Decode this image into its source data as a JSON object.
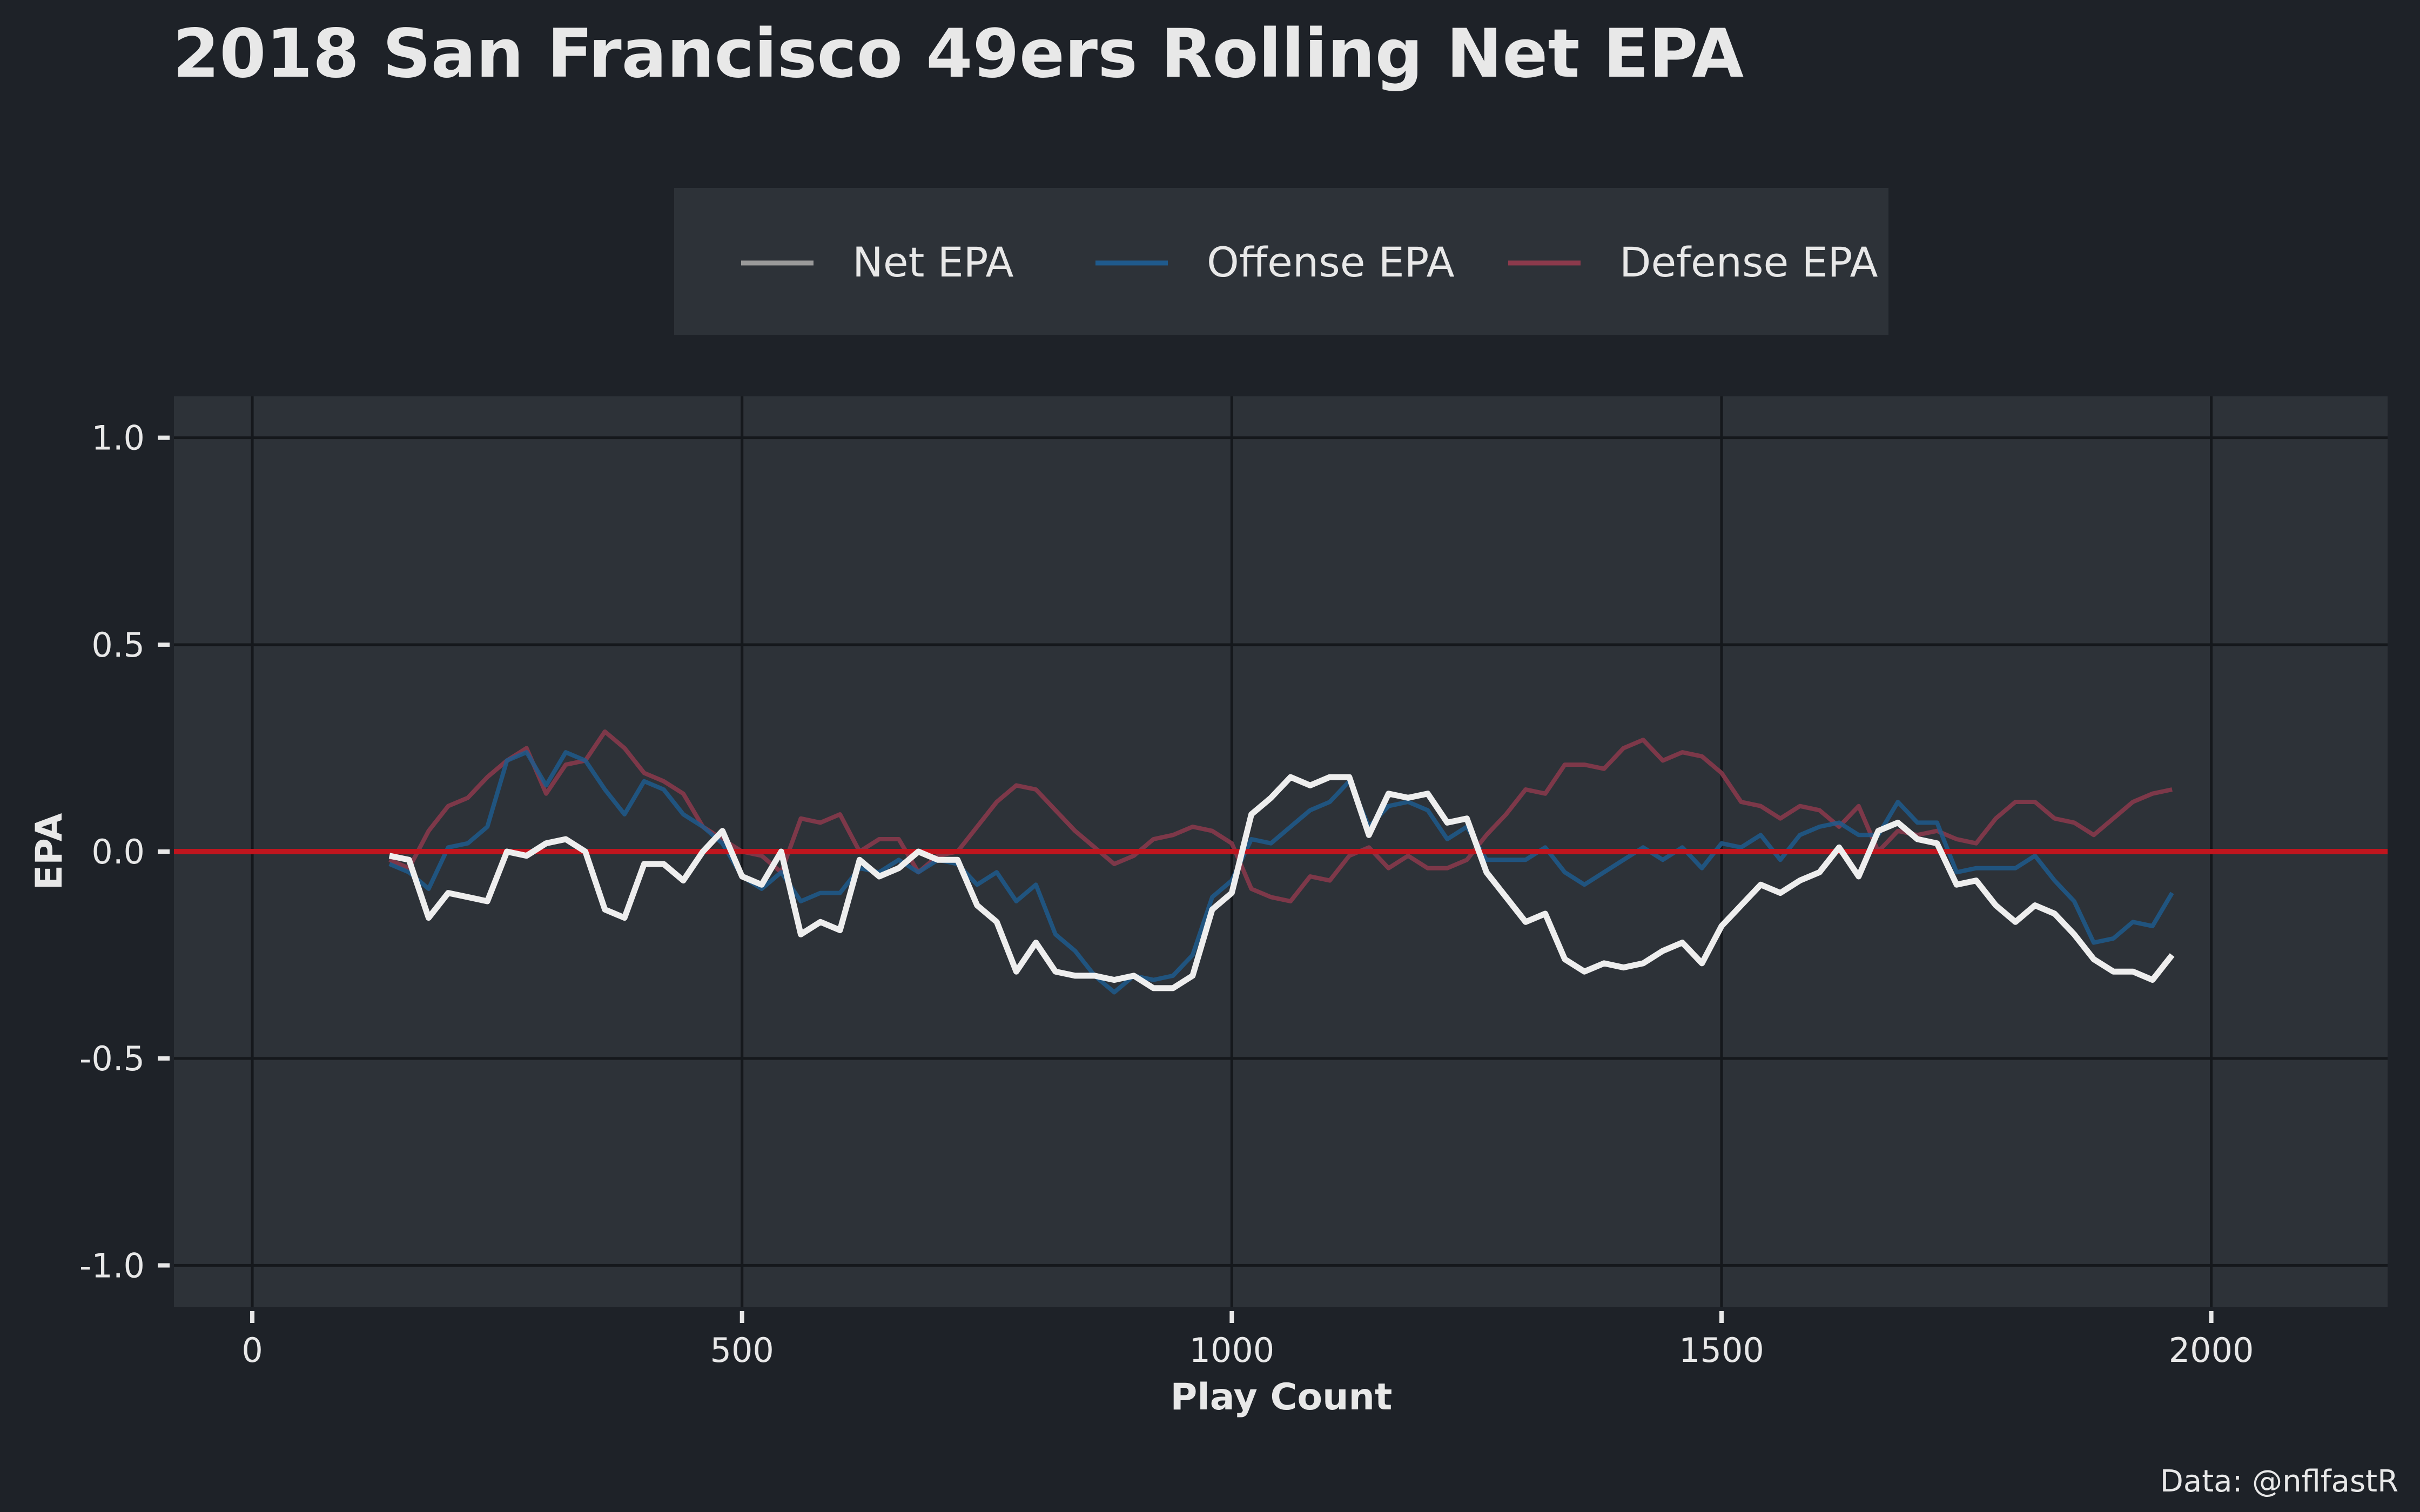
{
  "chart_data": {
    "type": "line",
    "title": "2018 San Francisco 49ers Rolling Net EPA",
    "xlabel": "Play Count",
    "ylabel": "EPA",
    "caption": "Data: @nflfastR",
    "xlim": [
      -80,
      2180
    ],
    "ylim": [
      -1.1,
      1.1
    ],
    "x_ticks": [
      0,
      500,
      1000,
      1500,
      2000
    ],
    "x_tick_labels": [
      "0",
      "500",
      "1000",
      "1500",
      "2000"
    ],
    "y_ticks": [
      1.0,
      0.5,
      0.0,
      -0.5,
      -1.0
    ],
    "y_tick_labels": [
      "1.0",
      "0.5",
      "0.0",
      "-0.5",
      "-1.0"
    ],
    "grid": true,
    "legend_position": "top",
    "reference_line": {
      "y": 0,
      "color": "#c0151e"
    },
    "x": [
      140,
      160,
      180,
      200,
      220,
      240,
      260,
      280,
      300,
      320,
      340,
      360,
      380,
      400,
      420,
      440,
      460,
      480,
      500,
      520,
      540,
      560,
      580,
      600,
      620,
      640,
      660,
      680,
      700,
      720,
      740,
      760,
      780,
      800,
      820,
      840,
      860,
      880,
      900,
      920,
      940,
      960,
      980,
      1000,
      1020,
      1040,
      1060,
      1080,
      1100,
      1120,
      1140,
      1160,
      1180,
      1200,
      1220,
      1240,
      1260,
      1280,
      1300,
      1320,
      1340,
      1360,
      1380,
      1400,
      1420,
      1440,
      1460,
      1480,
      1500,
      1520,
      1540,
      1560,
      1580,
      1600,
      1620,
      1640,
      1660,
      1680,
      1700,
      1720,
      1740,
      1760,
      1780,
      1800,
      1820,
      1840,
      1860,
      1880,
      1900,
      1920,
      1940,
      1960
    ],
    "series": [
      {
        "name": "Net EPA",
        "legend_color": "#9a9a9a",
        "color": "#eeeeee",
        "values": [
          -0.01,
          -0.02,
          -0.16,
          -0.1,
          -0.11,
          -0.12,
          0.0,
          -0.01,
          0.02,
          0.03,
          0.0,
          -0.14,
          -0.16,
          -0.03,
          -0.03,
          -0.07,
          0.0,
          0.05,
          -0.06,
          -0.08,
          0.0,
          -0.2,
          -0.17,
          -0.19,
          -0.02,
          -0.06,
          -0.04,
          0.0,
          -0.02,
          -0.02,
          -0.13,
          -0.17,
          -0.29,
          -0.22,
          -0.29,
          -0.3,
          -0.3,
          -0.31,
          -0.3,
          -0.33,
          -0.33,
          -0.3,
          -0.14,
          -0.1,
          0.09,
          0.13,
          0.18,
          0.16,
          0.18,
          0.18,
          0.04,
          0.14,
          0.13,
          0.14,
          0.07,
          0.08,
          -0.05,
          -0.11,
          -0.17,
          -0.15,
          -0.26,
          -0.29,
          -0.27,
          -0.28,
          -0.27,
          -0.24,
          -0.22,
          -0.27,
          -0.18,
          -0.13,
          -0.08,
          -0.1,
          -0.07,
          -0.05,
          0.01,
          -0.06,
          0.05,
          0.07,
          0.03,
          0.02,
          -0.08,
          -0.07,
          -0.13,
          -0.17,
          -0.13,
          -0.15,
          -0.2,
          -0.26,
          -0.29,
          -0.29,
          -0.31,
          -0.25
        ]
      },
      {
        "name": "Offense EPA",
        "legend_color": "#1f5a8c",
        "color": "#1f5a8c",
        "values": [
          -0.03,
          -0.05,
          -0.09,
          0.01,
          0.02,
          0.06,
          0.22,
          0.24,
          0.16,
          0.24,
          0.22,
          0.15,
          0.09,
          0.17,
          0.15,
          0.09,
          0.06,
          0.02,
          -0.06,
          -0.09,
          -0.05,
          -0.12,
          -0.1,
          -0.1,
          -0.04,
          -0.05,
          -0.02,
          -0.05,
          -0.02,
          -0.03,
          -0.08,
          -0.05,
          -0.12,
          -0.08,
          -0.2,
          -0.24,
          -0.3,
          -0.34,
          -0.3,
          -0.31,
          -0.3,
          -0.25,
          -0.11,
          -0.07,
          0.03,
          0.02,
          0.06,
          0.1,
          0.12,
          0.17,
          0.06,
          0.11,
          0.12,
          0.1,
          0.03,
          0.06,
          -0.02,
          -0.02,
          -0.02,
          0.01,
          -0.05,
          -0.08,
          -0.05,
          -0.02,
          0.01,
          -0.02,
          0.01,
          -0.04,
          0.02,
          0.01,
          0.04,
          -0.02,
          0.04,
          0.06,
          0.07,
          0.04,
          0.04,
          0.12,
          0.07,
          0.07,
          -0.05,
          -0.04,
          -0.04,
          -0.04,
          -0.01,
          -0.07,
          -0.12,
          -0.22,
          -0.21,
          -0.17,
          -0.18,
          -0.1
        ]
      },
      {
        "name": "Defense EPA",
        "legend_color": "#8c3a4c",
        "color": "#8c3a4c",
        "values": [
          -0.02,
          -0.04,
          0.05,
          0.11,
          0.13,
          0.18,
          0.22,
          0.25,
          0.14,
          0.21,
          0.22,
          0.29,
          0.25,
          0.19,
          0.17,
          0.14,
          0.06,
          0.03,
          0.0,
          -0.01,
          -0.05,
          0.08,
          0.07,
          0.09,
          0.0,
          0.03,
          0.03,
          -0.05,
          -0.01,
          0.0,
          0.06,
          0.12,
          0.16,
          0.15,
          0.1,
          0.05,
          0.01,
          -0.03,
          -0.01,
          0.03,
          0.04,
          0.06,
          0.05,
          0.02,
          -0.09,
          -0.11,
          -0.12,
          -0.06,
          -0.07,
          -0.01,
          0.01,
          -0.04,
          -0.01,
          -0.04,
          -0.04,
          -0.02,
          0.04,
          0.09,
          0.15,
          0.14,
          0.21,
          0.21,
          0.2,
          0.25,
          0.27,
          0.22,
          0.24,
          0.23,
          0.19,
          0.12,
          0.11,
          0.08,
          0.11,
          0.1,
          0.06,
          0.11,
          0.0,
          0.05,
          0.04,
          0.05,
          0.03,
          0.02,
          0.08,
          0.12,
          0.12,
          0.08,
          0.07,
          0.04,
          0.08,
          0.12,
          0.14,
          0.15
        ]
      }
    ]
  }
}
